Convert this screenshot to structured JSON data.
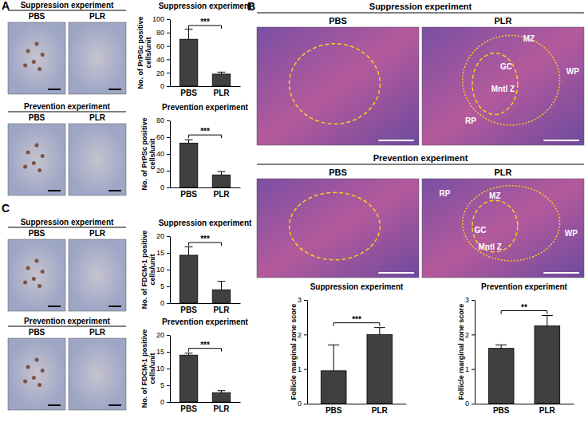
{
  "chart_data": [
    {
      "type": "bar",
      "title": "Suppression experiment",
      "y_label": "No. of PrPSc positive cells/unit",
      "categories": [
        "PBS",
        "PLR"
      ],
      "values": [
        70,
        18
      ],
      "errors": [
        15,
        3
      ],
      "color": "#404040",
      "ylim": [
        0,
        100
      ],
      "yticks": [
        0,
        20,
        40,
        60,
        80,
        100
      ],
      "annotation": "***"
    },
    {
      "type": "bar",
      "title": "Prevention experiment",
      "y_label": "No. of PrPSc positive cells/unit",
      "categories": [
        "PBS",
        "PLR"
      ],
      "values": [
        53,
        15
      ],
      "errors": [
        4,
        4
      ],
      "color": "#404040",
      "ylim": [
        0,
        80
      ],
      "yticks": [
        0,
        20,
        40,
        60,
        80
      ],
      "annotation": "***"
    },
    {
      "type": "bar",
      "title": "Suppression experiment",
      "y_label": "Follicle marginal zone score",
      "categories": [
        "PBS",
        "PLR"
      ],
      "values": [
        0.95,
        2.0
      ],
      "errors": [
        0.75,
        0.2
      ],
      "color": "#404040",
      "ylim": [
        0,
        3
      ],
      "yticks": [
        0,
        1,
        2,
        3
      ],
      "annotation": "***"
    },
    {
      "type": "bar",
      "title": "Prevention experiment",
      "y_label": "Follicle marginal zone score",
      "categories": [
        "PBS",
        "PLR"
      ],
      "values": [
        1.6,
        2.25
      ],
      "errors": [
        0.1,
        0.3
      ],
      "color": "#404040",
      "ylim": [
        0,
        3
      ],
      "yticks": [
        0,
        1,
        2,
        3
      ],
      "annotation": "**"
    },
    {
      "type": "bar",
      "title": "Suppression experiment",
      "y_label": "No. of FDCM-1 positive cells/unit",
      "categories": [
        "PBS",
        "PLR"
      ],
      "values": [
        14.3,
        4
      ],
      "errors": [
        2.5,
        2.5
      ],
      "color": "#404040",
      "ylim": [
        0,
        20
      ],
      "yticks": [
        0,
        5,
        10,
        15,
        20
      ],
      "annotation": "***"
    },
    {
      "type": "bar",
      "title": "Prevention experiment",
      "y_label": "No. of FDCM-1 positive cells/unit",
      "categories": [
        "PBS",
        "PLR"
      ],
      "values": [
        14,
        2.8
      ],
      "errors": [
        0.6,
        0.6
      ],
      "color": "#404040",
      "ylim": [
        0,
        20
      ],
      "yticks": [
        0,
        5,
        10,
        15,
        20
      ],
      "annotation": "***"
    }
  ],
  "figure": {
    "panels": [
      {
        "letter": "A",
        "image_groups": [
          {
            "title": "Suppression experiment",
            "labels": [
              "PBS",
              "PLR"
            ]
          },
          {
            "title": "Prevention experiment",
            "labels": [
              "PBS",
              "PLR"
            ]
          }
        ]
      },
      {
        "letter": "B",
        "image_groups": [
          {
            "title": "Suppression experiment",
            "labels": [
              "PBS",
              "PLR"
            ],
            "annotations": [
              "MZ",
              "GC",
              "Mntl Z",
              "WP",
              "RP"
            ]
          },
          {
            "title": "Prevention experiment",
            "labels": [
              "PBS",
              "PLR"
            ],
            "annotations": [
              "RP",
              "MZ",
              "GC",
              "Mntl Z",
              "WP"
            ]
          }
        ]
      },
      {
        "letter": "C",
        "image_groups": [
          {
            "title": "Suppression experiment",
            "labels": [
              "PBS",
              "PLR"
            ]
          },
          {
            "title": "Prevention experiment",
            "labels": [
              "PBS",
              "PLR"
            ]
          }
        ]
      }
    ]
  }
}
